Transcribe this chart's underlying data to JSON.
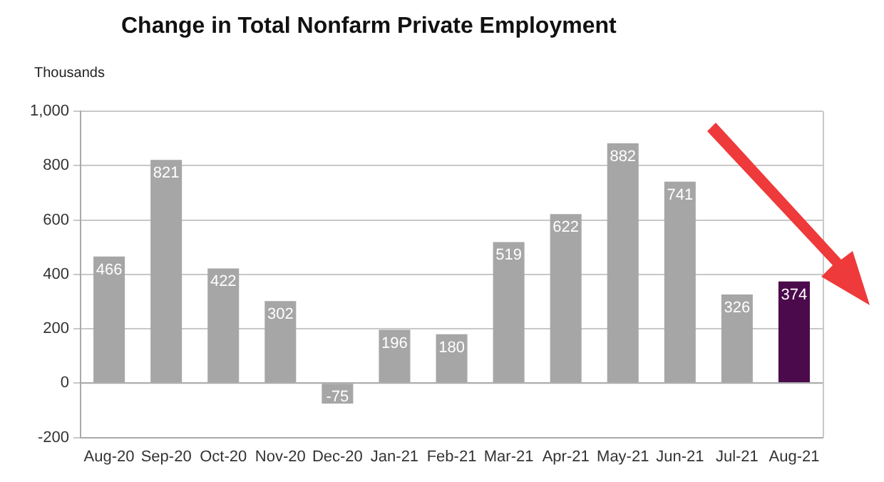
{
  "chart_data": {
    "type": "bar",
    "title": "Change in Total Nonfarm Private Employment",
    "ylabel": "Thousands",
    "categories": [
      "Aug-20",
      "Sep-20",
      "Oct-20",
      "Nov-20",
      "Dec-20",
      "Jan-21",
      "Feb-21",
      "Mar-21",
      "Apr-21",
      "May-21",
      "Jun-21",
      "Jul-21",
      "Aug-21"
    ],
    "values": [
      466,
      821,
      422,
      302,
      -75,
      196,
      180,
      519,
      622,
      882,
      741,
      326,
      374
    ],
    "colors": [
      "#a6a6a6",
      "#a6a6a6",
      "#a6a6a6",
      "#a6a6a6",
      "#a6a6a6",
      "#a6a6a6",
      "#a6a6a6",
      "#a6a6a6",
      "#a6a6a6",
      "#a6a6a6",
      "#a6a6a6",
      "#a6a6a6",
      "#4b0a4b"
    ],
    "ylim": [
      -200,
      1000
    ],
    "yticks": [
      -200,
      0,
      200,
      400,
      600,
      800,
      {
        "value": 1000,
        "label": "1,000"
      }
    ],
    "grid": "y",
    "data_labels": true,
    "legend": false
  }
}
